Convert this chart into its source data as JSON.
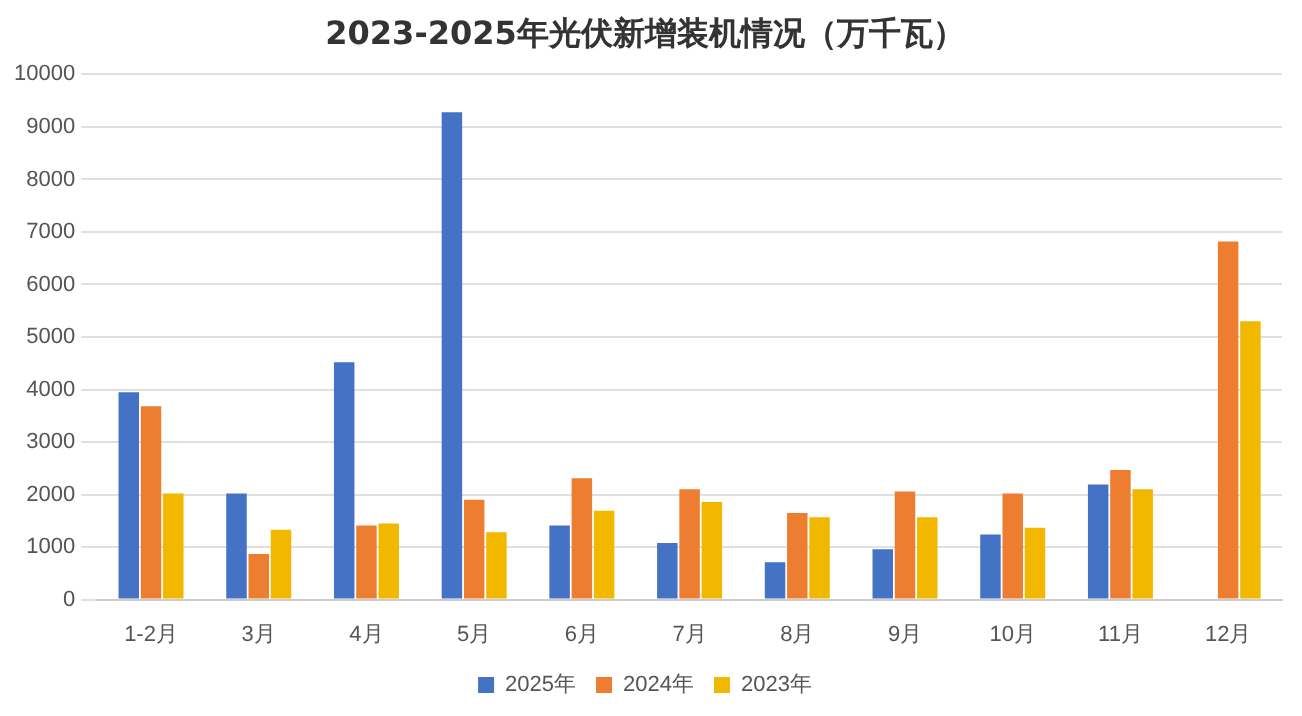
{
  "chart_data": {
    "type": "bar",
    "title": "2023-2025年光伏新增装机情况（万千瓦）",
    "categories": [
      "1-2月",
      "3月",
      "4月",
      "5月",
      "6月",
      "7月",
      "8月",
      "9月",
      "10月",
      "11月",
      "12月"
    ],
    "series": [
      {
        "name": "2025年",
        "color": "#4472c4",
        "values": [
          3950,
          2020,
          4520,
          9280,
          1410,
          1080,
          710,
          960,
          1240,
          2190,
          null
        ]
      },
      {
        "name": "2024年",
        "color": "#ed7d31",
        "values": [
          3680,
          870,
          1410,
          1900,
          2310,
          2100,
          1650,
          2060,
          2020,
          2470,
          6820
        ]
      },
      {
        "name": "2023年",
        "color": "#f2b800",
        "values": [
          2020,
          1330,
          1450,
          1280,
          1690,
          1860,
          1570,
          1570,
          1370,
          2100,
          5300
        ]
      }
    ],
    "ylim": [
      0,
      10000
    ],
    "yticks": [
      0,
      1000,
      2000,
      3000,
      4000,
      5000,
      6000,
      7000,
      8000,
      9000,
      10000
    ],
    "grid": "y",
    "legend": "bottom"
  }
}
